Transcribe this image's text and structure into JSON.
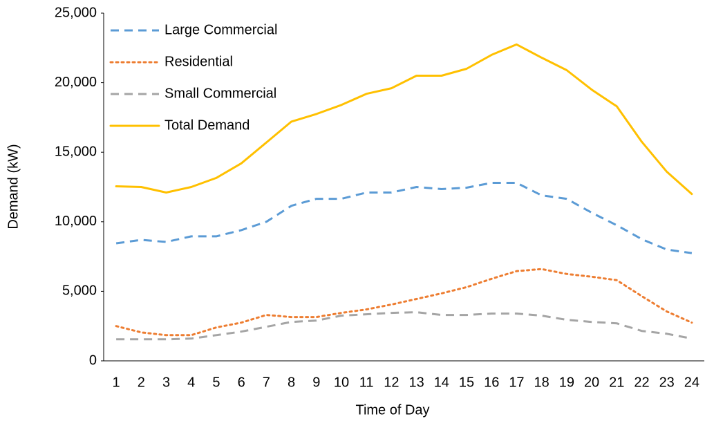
{
  "chart_data": {
    "type": "line",
    "x_label": "Time of Day",
    "y_label": "Demand (kW)",
    "categories": [
      "1",
      "2",
      "3",
      "4",
      "5",
      "6",
      "7",
      "8",
      "9",
      "10",
      "11",
      "12",
      "13",
      "14",
      "15",
      "16",
      "17",
      "18",
      "19",
      "20",
      "21",
      "22",
      "23",
      "24"
    ],
    "series": [
      {
        "name": "Large Commercial",
        "color": "#5b9bd5",
        "dash": "dashed",
        "values": [
          8450,
          8700,
          8550,
          8950,
          8950,
          9400,
          10000,
          11150,
          11650,
          11650,
          12100,
          12100,
          12500,
          12350,
          12450,
          12800,
          12800,
          11900,
          11650,
          10650,
          9750,
          8750,
          8000,
          7750
        ]
      },
      {
        "name": "Residential",
        "color": "#ed7d31",
        "dash": "dotted",
        "values": [
          2500,
          2050,
          1850,
          1850,
          2400,
          2750,
          3300,
          3150,
          3150,
          3450,
          3700,
          4050,
          4450,
          4850,
          5300,
          5900,
          6450,
          6600,
          6250,
          6050,
          5800,
          4650,
          3550,
          2750
        ]
      },
      {
        "name": "Small Commercial",
        "color": "#a5a5a5",
        "dash": "dashed",
        "values": [
          1550,
          1550,
          1550,
          1600,
          1850,
          2100,
          2450,
          2800,
          2900,
          3250,
          3350,
          3450,
          3500,
          3300,
          3300,
          3400,
          3400,
          3250,
          2950,
          2800,
          2700,
          2150,
          1950,
          1600
        ]
      },
      {
        "name": "Total Demand",
        "color": "#ffc000",
        "dash": "solid",
        "values": [
          12550,
          12500,
          12100,
          12500,
          13150,
          14200,
          15700,
          17200,
          17750,
          18400,
          19200,
          19600,
          20500,
          20500,
          21000,
          22000,
          22750,
          21800,
          20900,
          19500,
          18300,
          15750,
          13600,
          12000
        ]
      }
    ],
    "ylim": [
      0,
      25000
    ],
    "yticks": [
      0,
      {
        "value": 5000,
        "label": "5,000"
      },
      {
        "value": 10000,
        "label": "10,000"
      },
      {
        "value": 15000,
        "label": "15,000"
      },
      {
        "value": 20000,
        "label": "20,000"
      },
      {
        "value": 25000,
        "label": "25,000"
      }
    ],
    "grid": false,
    "legend": "top-left"
  }
}
